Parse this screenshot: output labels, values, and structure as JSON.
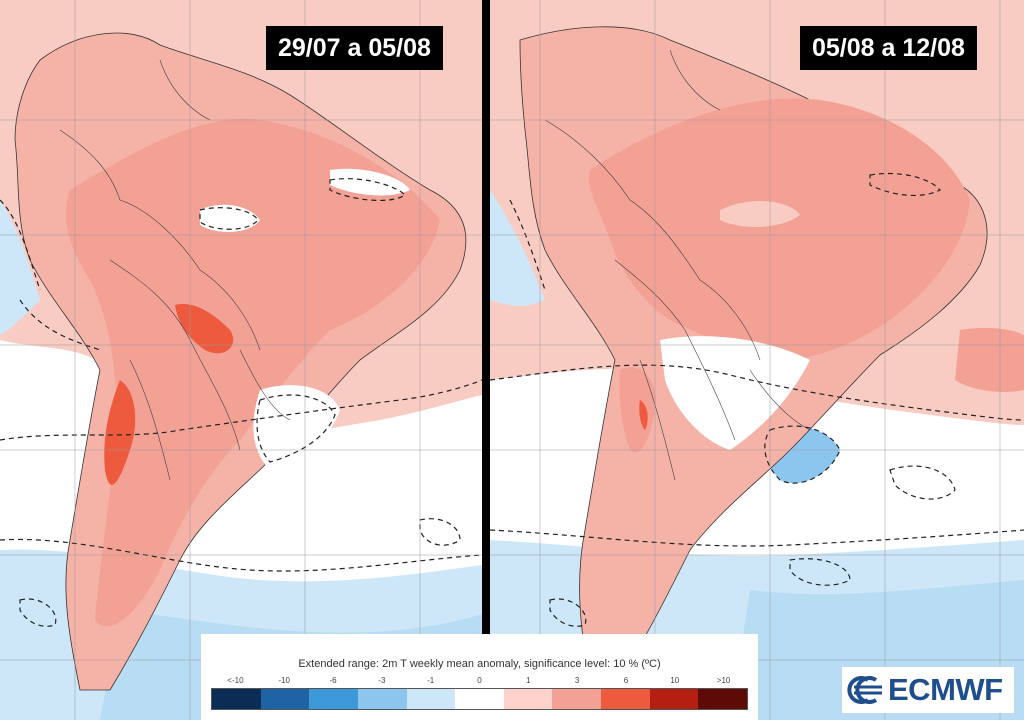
{
  "panels": [
    {
      "period_label": "29/07 a 05/08"
    },
    {
      "period_label": "05/08 a 12/08"
    }
  ],
  "legend": {
    "title": "Extended range: 2m T weekly mean anomaly, significance level: 10 % (ºC)",
    "ticks": [
      "<-10",
      "-10",
      "-6",
      "-3",
      "-1",
      "0",
      "1",
      "3",
      "6",
      "10",
      ">10"
    ],
    "colors": [
      "#0b2d55",
      "#1f63a5",
      "#3d98d8",
      "#8cc6ef",
      "#cde6f8",
      "#ffffff",
      "#fcd2cb",
      "#f3a095",
      "#ee5a3e",
      "#b51f12",
      "#5e0b08"
    ]
  },
  "logo": {
    "text": "ECMWF",
    "icon": "ecmwf-logo-icon"
  },
  "colors": {
    "land_neutral": "#ffffff",
    "warm_weak": "#fcd2cb",
    "warm_moderate": "#f3a095",
    "warm_strong": "#ee5a3e",
    "cool_weak": "#cde6f8",
    "cool_moderate": "#8cc6ef",
    "ocean_base": "#f9ccc3"
  }
}
